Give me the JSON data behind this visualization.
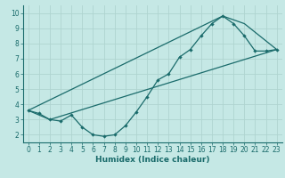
{
  "xlabel": "Humidex (Indice chaleur)",
  "bg_color": "#c5e8e5",
  "grid_color": "#afd4d0",
  "line_color": "#1a6b6b",
  "xlim": [
    -0.5,
    23.5
  ],
  "ylim": [
    1.5,
    10.5
  ],
  "xticks": [
    0,
    1,
    2,
    3,
    4,
    5,
    6,
    7,
    8,
    9,
    10,
    11,
    12,
    13,
    14,
    15,
    16,
    17,
    18,
    19,
    20,
    21,
    22,
    23
  ],
  "yticks": [
    2,
    3,
    4,
    5,
    6,
    7,
    8,
    9,
    10
  ],
  "line1_x": [
    0,
    1,
    2,
    3,
    4,
    5,
    6,
    7,
    8,
    9,
    10,
    11,
    12,
    13,
    14,
    15,
    16,
    17,
    18,
    19,
    20,
    21,
    22,
    23
  ],
  "line1_y": [
    3.6,
    3.4,
    3.0,
    2.9,
    3.3,
    2.5,
    2.0,
    1.9,
    2.0,
    2.6,
    3.5,
    4.5,
    5.6,
    6.0,
    7.1,
    7.6,
    8.5,
    9.3,
    9.8,
    9.3,
    8.5,
    7.5,
    7.5,
    7.6
  ],
  "line2_x": [
    0,
    2,
    23
  ],
  "line2_y": [
    3.6,
    3.0,
    7.6
  ],
  "line3_x": [
    0,
    18,
    20,
    23
  ],
  "line3_y": [
    3.6,
    9.8,
    9.3,
    7.6
  ]
}
